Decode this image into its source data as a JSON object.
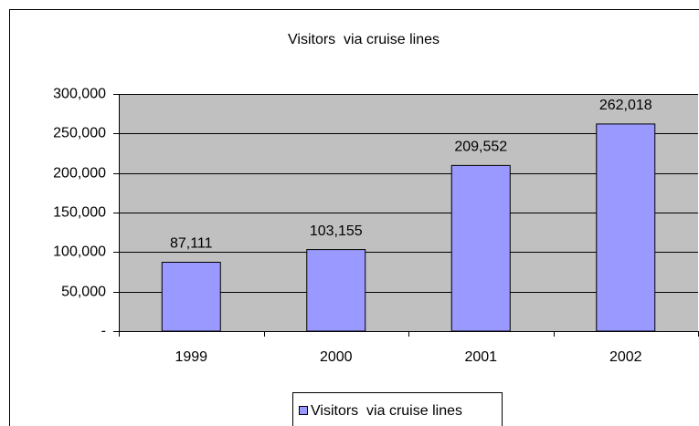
{
  "chart_data": {
    "type": "bar",
    "title": "Visitors  via cruise lines",
    "categories": [
      "1999",
      "2000",
      "2001",
      "2002"
    ],
    "series": [
      {
        "name": "Visitors  via cruise lines",
        "color": "#9999ff",
        "values": [
          87111,
          103155,
          209552,
          262018
        ],
        "value_labels": [
          "87,111",
          "103,155",
          "209,552",
          "262,018"
        ]
      }
    ],
    "ylim": [
      0,
      300000
    ],
    "yticks": [
      {
        "value": 0,
        "label": "-"
      },
      {
        "value": 50000,
        "label": "50,000"
      },
      {
        "value": 100000,
        "label": "100,000"
      },
      {
        "value": 150000,
        "label": "150,000"
      },
      {
        "value": 200000,
        "label": "200,000"
      },
      {
        "value": 250000,
        "label": "250,000"
      },
      {
        "value": 300000,
        "label": "300,000"
      }
    ],
    "grid": true,
    "legend": "bottom",
    "plot_background": "#c0c0c0"
  }
}
